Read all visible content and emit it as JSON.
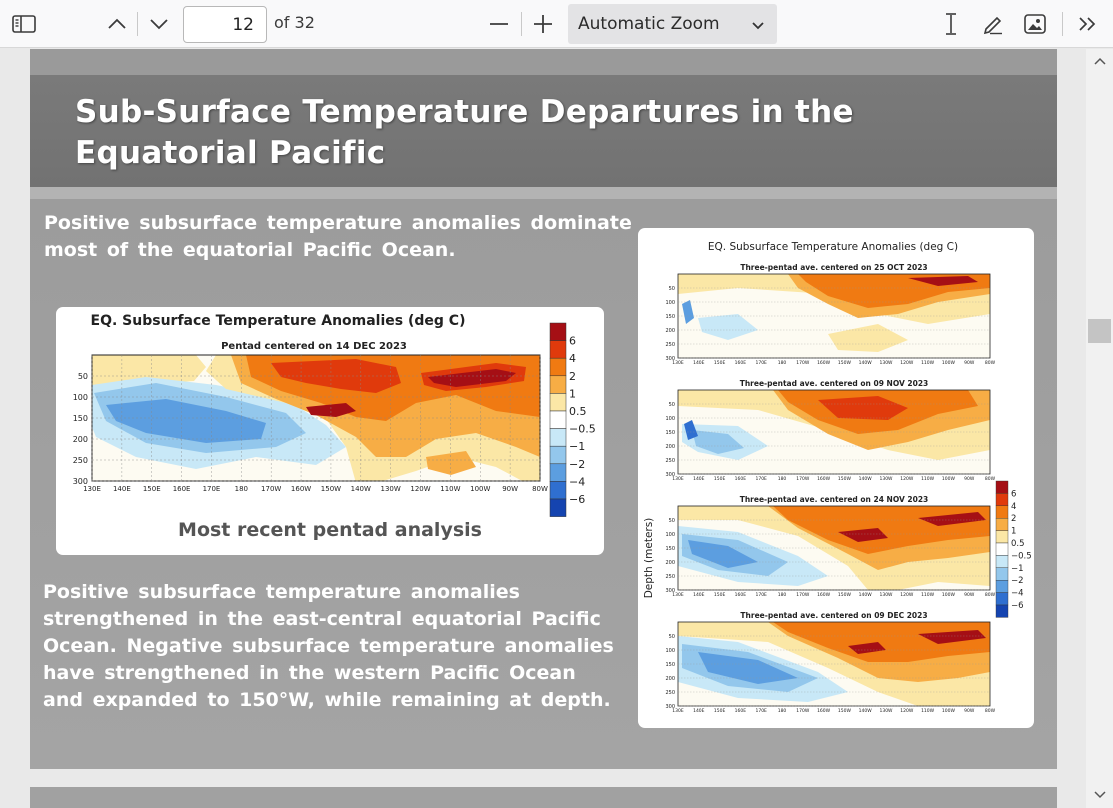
{
  "toolbar": {
    "sidebar_icon": "sidebar-toggle-icon",
    "prev_icon": "chevron-up-icon",
    "next_icon": "chevron-down-icon",
    "page_number": "12",
    "page_total": "of 32",
    "zoom_out_icon": "minus-icon",
    "zoom_in_icon": "plus-icon",
    "zoom_value": "Automatic Zoom",
    "text_tool_icon": "text-cursor-icon",
    "draw_icon": "pen-icon",
    "image_icon": "add-image-icon",
    "more_icon": "double-chevron-icon"
  },
  "slide": {
    "title": "Sub-Surface Temperature Departures in the Equatorial Pacific",
    "para1": "Positive subsurface temperature anomalies dominate most of the equatorial Pacific Ocean.",
    "para2": "Positive subsurface temperature anomalies strengthened in the east-central equatorial Pacific Ocean. Negative subsurface temperature anomalies have strengthened in the western Pacific Ocean and expanded to 150°W, while remaining at depth.",
    "main_caption": "Most recent pentad analysis"
  },
  "chart_data": [
    {
      "type": "heatmap",
      "title": "EQ. Subsurface Temperature Anomalies (deg C)",
      "subtitle": "Pentad centered on 14 DEC 2023",
      "x_ticks": [
        "130E",
        "140E",
        "150E",
        "160E",
        "170E",
        "180",
        "170W",
        "160W",
        "150W",
        "140W",
        "130W",
        "120W",
        "110W",
        "100W",
        "90W",
        "80W"
      ],
      "y_ticks": [
        "50",
        "100",
        "150",
        "200",
        "250",
        "300"
      ],
      "colorbar_labels": [
        "6",
        "4",
        "2",
        "1",
        "0.5",
        "−0.5",
        "−1",
        "−2",
        "−4",
        "−6"
      ]
    },
    {
      "type": "heatmap",
      "title": "EQ. Subsurface Temperature Anomalies (deg C)",
      "ylabel": "Depth (meters)",
      "panels": [
        {
          "subtitle": "Three-pentad ave. centered on 25 OCT 2023"
        },
        {
          "subtitle": "Three-pentad ave. centered on 09 NOV 2023"
        },
        {
          "subtitle": "Three-pentad ave. centered on 24 NOV 2023"
        },
        {
          "subtitle": "Three-pentad ave. centered on 09 DEC 2023"
        }
      ],
      "x_ticks": [
        "130E",
        "140E",
        "150E",
        "160E",
        "170E",
        "180",
        "170W",
        "160W",
        "150W",
        "140W",
        "130W",
        "120W",
        "110W",
        "100W",
        "90W",
        "80W"
      ],
      "y_ticks": [
        "50",
        "100",
        "150",
        "200",
        "250",
        "300"
      ],
      "colorbar_labels": [
        "6",
        "4",
        "2",
        "1",
        "0.5",
        "−0.5",
        "−1",
        "−2",
        "−4",
        "−6"
      ],
      "colorbar_colors": [
        "#a50f15",
        "#e03a0c",
        "#f07a12",
        "#f7ad45",
        "#fbe7a6",
        "#ffffff",
        "#c8e8f7",
        "#93c7ec",
        "#5c9ee0",
        "#2f6fd0",
        "#1544b0"
      ]
    }
  ]
}
